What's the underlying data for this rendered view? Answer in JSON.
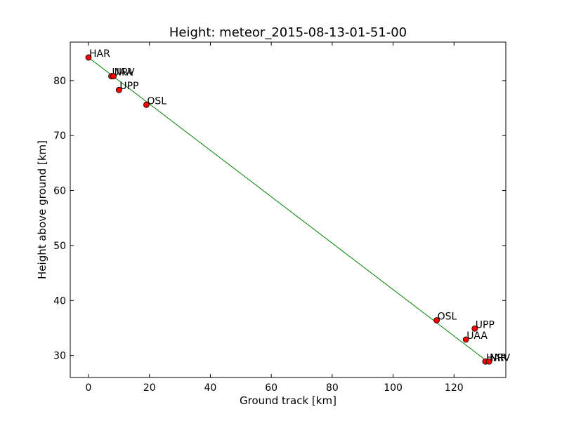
{
  "chart_data": {
    "type": "scatter",
    "title": "Height: meteor_2015-08-13-01-51-00",
    "xlabel": "Ground track [km]",
    "ylabel": "Height above ground [km]",
    "xlim": [
      -6,
      137
    ],
    "ylim": [
      26,
      87
    ],
    "xticks": [
      0,
      20,
      40,
      60,
      80,
      100,
      120
    ],
    "yticks": [
      30,
      40,
      50,
      60,
      70,
      80
    ],
    "grid": false,
    "fit_line": {
      "color": "#008000",
      "points": [
        [
          0,
          84.2
        ],
        [
          131,
          28.9
        ]
      ]
    },
    "point_color": "#ff0000",
    "points": [
      {
        "label": "HAR",
        "x": 0,
        "y": 84.2
      },
      {
        "label": "UAA",
        "x": 7.5,
        "y": 80.8
      },
      {
        "label": "NRV",
        "x": 8.2,
        "y": 80.8
      },
      {
        "label": "UPP",
        "x": 10,
        "y": 78.3
      },
      {
        "label": "OSL",
        "x": 19,
        "y": 75.6
      },
      {
        "label": "OSL",
        "x": 114.3,
        "y": 36.4
      },
      {
        "label": "UPP",
        "x": 126.8,
        "y": 34.9
      },
      {
        "label": "UAA",
        "x": 123.9,
        "y": 32.9
      },
      {
        "label": "HAR",
        "x": 130.3,
        "y": 28.9
      },
      {
        "label": "NRV",
        "x": 131.5,
        "y": 28.9
      }
    ]
  }
}
